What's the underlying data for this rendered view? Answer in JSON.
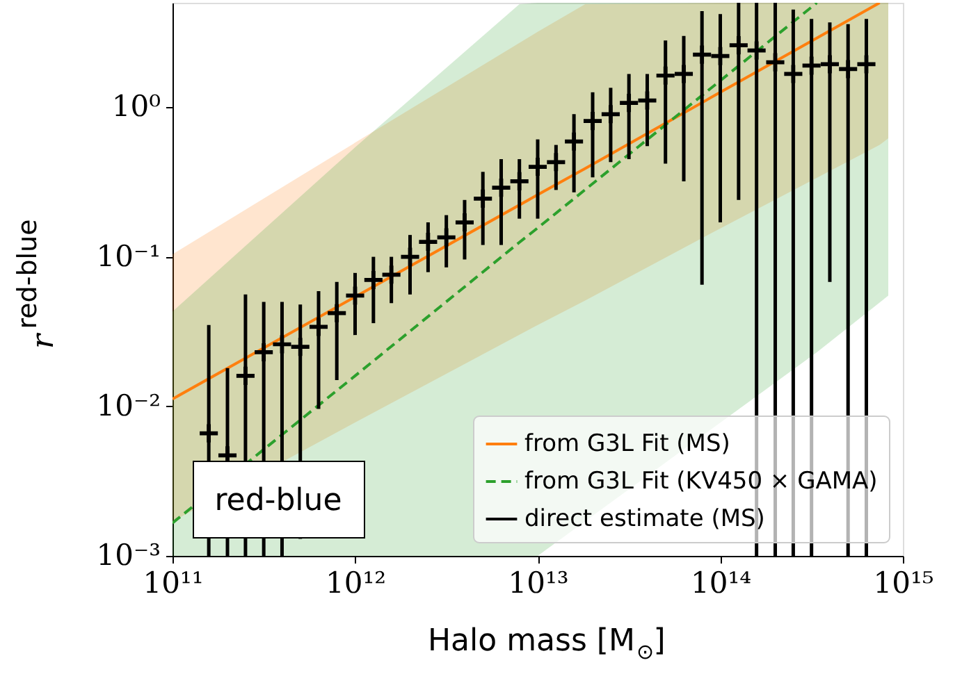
{
  "chart_data": {
    "type": "line",
    "xlabel": "Halo mass [M$_{⊙}$]",
    "ylabel": "r$^{red-blue}$",
    "log": "xy",
    "grid": false,
    "legend": "bottom right",
    "xlim": [
      100000000000.0,
      1000000000000000.0
    ],
    "ylim": [
      0.001,
      5
    ],
    "xticks": [
      {
        "value": 100000000000.0,
        "label": "10¹¹"
      },
      {
        "value": 1000000000000.0,
        "label": "10¹²"
      },
      {
        "value": 10000000000000.0,
        "label": "10¹³"
      },
      {
        "value": 100000000000000.0,
        "label": "10¹⁴"
      },
      {
        "value": 1000000000000000.0,
        "label": "10¹⁵"
      }
    ],
    "yticks": [
      {
        "value": 0.001,
        "label": "10⁻³"
      },
      {
        "value": 0.01,
        "label": "10⁻²"
      },
      {
        "value": 0.1,
        "label": "10⁻¹"
      },
      {
        "value": 1,
        "label": "10⁰"
      }
    ],
    "annotations": [
      "red-blue"
    ],
    "series": [
      {
        "name": "from G3L Fit (MS)",
        "type": "line",
        "color": "#ff7f0e",
        "line_style": "solid",
        "x": [
          100000000000.0,
          1000000000000.0,
          10000000000000.0,
          18200000000000.0,
          100000000000000.0,
          746000000000000.0,
          832000000000000.0
        ],
        "values": [
          0.0112,
          0.054,
          0.26,
          0.39,
          1.26,
          5,
          null
        ],
        "lower": [
          0.0017,
          0.0078,
          0.035,
          0.051,
          0.155,
          0.56,
          0.62
        ],
        "upper": [
          0.104,
          0.58,
          3.2,
          4.9,
          5,
          5,
          5
        ]
      },
      {
        "name": "from G3L Fit (KV450 × GAMA)",
        "type": "line",
        "color": "#2ca02c",
        "line_style": "dashed",
        "x": [
          100000000000.0,
          1000000000000.0,
          7940000000000.0,
          10000000000000.0,
          338000000000000.0,
          832000000000000.0
        ],
        "values": [
          0.00166,
          0.016,
          0.125,
          0.156,
          5,
          null
        ],
        "lower": [
          0.001,
          0.001,
          0.001,
          0.001,
          0.023,
          0.055
        ],
        "upper": [
          0.043,
          0.54,
          4.9,
          5,
          5,
          5
        ]
      },
      {
        "name": "direct estimate (MS)",
        "type": "scatter",
        "color": "#000000",
        "marker": "cross",
        "x": [
          158000000000.0,
          200000000000.0,
          251000000000.0,
          316000000000.0,
          398000000000.0,
          501000000000.0,
          631000000000.0,
          794000000000.0,
          1000000000000.0,
          1260000000000.0,
          1580000000000.0,
          2000000000000.0,
          2510000000000.0,
          3160000000000.0,
          3980000000000.0,
          5010000000000.0,
          6310000000000.0,
          7940000000000.0,
          10000000000000.0,
          12600000000000.0,
          15800000000000.0,
          20000000000000.0,
          25100000000000.0,
          31600000000000.0,
          39800000000000.0,
          50100000000000.0,
          63100000000000.0,
          79400000000000.0,
          100000000000000.0,
          126000000000000.0,
          158000000000000.0,
          200000000000000.0,
          251000000000000.0,
          316000000000000.0,
          398000000000000.0,
          501000000000000.0,
          631000000000000.0
        ],
        "values": [
          0.0066,
          0.0047,
          0.016,
          0.023,
          0.026,
          0.025,
          0.034,
          0.042,
          0.055,
          0.07,
          0.076,
          0.1,
          0.126,
          0.135,
          0.17,
          0.245,
          0.29,
          0.32,
          0.4,
          0.43,
          0.59,
          0.81,
          0.9,
          1.07,
          1.11,
          1.63,
          1.67,
          2.25,
          2.2,
          2.6,
          2.4,
          2.0,
          1.67,
          1.9,
          1.94,
          1.8,
          1.94
        ],
        "errors": [
          [
            0.001,
            0.035
          ],
          [
            0.001,
            0.018
          ],
          [
            0.001,
            0.056
          ],
          [
            0.001,
            0.05
          ],
          [
            0.001,
            0.05
          ],
          [
            0.0013,
            0.048
          ],
          [
            0.0096,
            0.059
          ],
          [
            0.015,
            0.068
          ],
          [
            0.03,
            0.078
          ],
          [
            0.036,
            0.1
          ],
          [
            0.049,
            0.1
          ],
          [
            0.056,
            0.14
          ],
          [
            0.079,
            0.17
          ],
          [
            0.085,
            0.19
          ],
          [
            0.096,
            0.24
          ],
          [
            0.12,
            0.37
          ],
          [
            0.12,
            0.45
          ],
          [
            0.18,
            0.45
          ],
          [
            0.18,
            0.61
          ],
          [
            0.28,
            0.56
          ],
          [
            0.27,
            0.9
          ],
          [
            0.34,
            1.26
          ],
          [
            0.43,
            1.35
          ],
          [
            0.45,
            1.67
          ],
          [
            0.55,
            1.67
          ],
          [
            0.42,
            2.8
          ],
          [
            0.32,
            3.0
          ],
          [
            0.065,
            4.4
          ],
          [
            0.17,
            4.2
          ],
          [
            0.24,
            5
          ],
          [
            0.001,
            5
          ],
          [
            0.001,
            5
          ],
          [
            0.001,
            4.5
          ],
          [
            0.001,
            3.9
          ],
          [
            0.068,
            3.7
          ],
          [
            0.001,
            3.6
          ],
          [
            0.001,
            3.9
          ]
        ]
      }
    ]
  }
}
